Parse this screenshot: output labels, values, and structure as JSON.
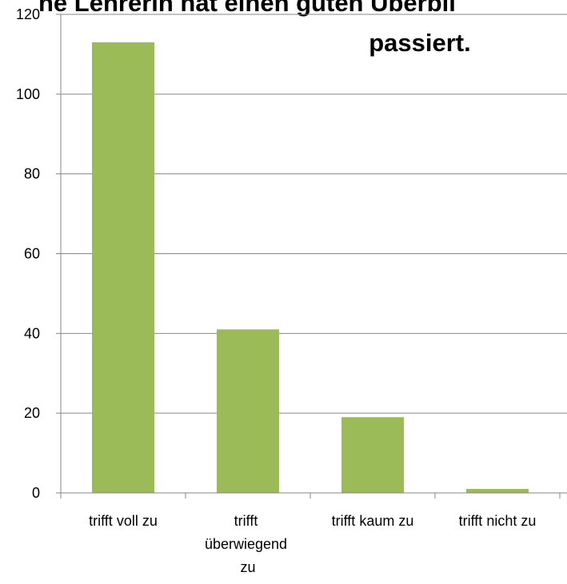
{
  "chart_data": {
    "type": "bar",
    "title": [
      "ne Lehrerin hat einen guten Überbli",
      "passiert."
    ],
    "categories": [
      "trifft voll zu",
      "trifft überwiegend zu",
      "trifft kaum zu",
      "trifft nicht zu"
    ],
    "values": [
      113,
      41,
      19,
      1
    ],
    "color": "#9bbb59",
    "ylim": [
      0,
      120
    ],
    "yticks": [
      0,
      20,
      40,
      60,
      80,
      100,
      120
    ],
    "grid": true
  }
}
